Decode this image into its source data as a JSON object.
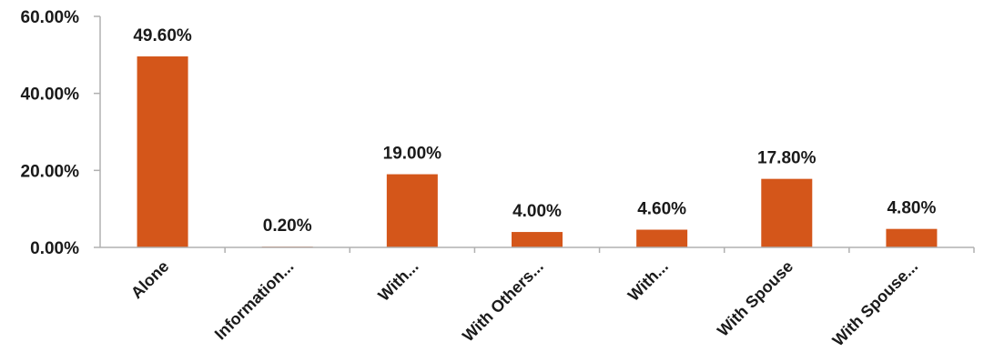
{
  "chart_data": {
    "type": "bar",
    "categories": [
      "Alone",
      "Information...",
      "With...",
      "With Others...",
      "With...",
      "With Spouse",
      "With Spouse..."
    ],
    "values": [
      49.6,
      0.2,
      19.0,
      4.0,
      4.6,
      17.8,
      4.8
    ],
    "data_labels": [
      "49.60%",
      "0.20%",
      "19.00%",
      "4.00%",
      "4.60%",
      "17.80%",
      "4.80%"
    ],
    "yticks": [
      0,
      20,
      40,
      60
    ],
    "ytick_labels": [
      "0.00%",
      "20.00%",
      "40.00%",
      "60.00%"
    ],
    "ylim": [
      0,
      60
    ],
    "title": "",
    "xlabel": "",
    "ylabel": "",
    "grid": false,
    "legend": "none",
    "bar_color": "#d4561a",
    "axis_color": "#b0b0b0"
  }
}
